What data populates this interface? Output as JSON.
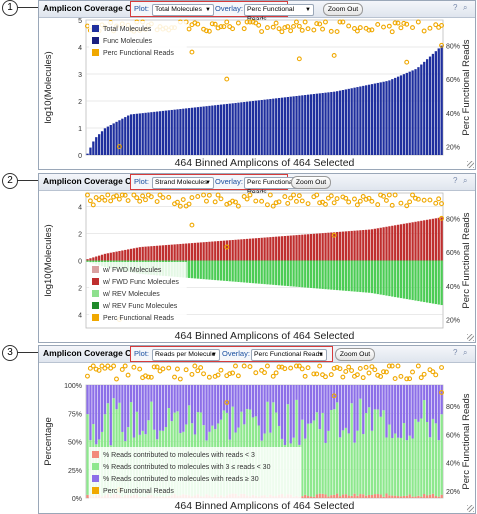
{
  "callouts": [
    "1",
    "2",
    "3"
  ],
  "panel_title": "Amplicon Coverage Chart",
  "plot_label": "Plot:",
  "overlay_label": "Overlay:",
  "zoom_out": "Zoom Out",
  "help_icon_glyph": "?",
  "search_icon_glyph": "⌕",
  "colors": {
    "total": "#1f2f9e",
    "func": "#1a1f80",
    "perc": "#f0a800",
    "fwd": "#d9a1a1",
    "fwd_func": "#bf2e2e",
    "rev": "#8ee08e",
    "rev_func": "#1f8a2a",
    "lt3": "#f28b7a",
    "mid": "#8ee88e",
    "ge30": "#8c6fe8",
    "grid": "#d6d6d6"
  },
  "panels": [
    {
      "plot_value": "Total Molecules",
      "overlay_value": "Perc Functional Reads",
      "xlabel": "464 Binned Amplicons of 464 Selected",
      "ylabel": "log10(Molecules)",
      "y2label": "Perc Functional Reads",
      "legend": [
        "Total Molecules",
        "Func Molecules",
        "Perc Functional Reads"
      ]
    },
    {
      "plot_value": "Strand Molecules",
      "overlay_value": "Perc Functional Reads",
      "xlabel": "464 Binned Amplicons of 464 Selected",
      "ylabel": "log10(Molecules)",
      "y2label": "Perc Functional Reads",
      "legend": [
        "w/ FWD Molecules",
        "w/ FWD Func Molecules",
        "w/ REV Molecules",
        "w/ REV Func Molecules",
        "Perc Functional Reads"
      ]
    },
    {
      "plot_value": "Reads per Molecule",
      "overlay_value": "Perc Functional Reads",
      "xlabel": "464 Binned Amplicons of 464 Selected",
      "ylabel": "Percentage",
      "y2label": "Perc Functional Reads",
      "legend": [
        "% Reads contributed to molecules with reads < 3",
        "% Reads contributed to molecules with 3 ≤ reads < 30",
        "% Reads contributed to molecules with reads ≥ 30",
        "Perc Functional Reads"
      ]
    }
  ],
  "chart_data": [
    {
      "type": "bar",
      "xlabel": "464 Binned Amplicons of 464 Selected",
      "ylabel": "log10(Molecules)",
      "y2label": "Perc Functional Reads",
      "ylim": [
        0,
        5
      ],
      "y2lim": [
        15,
        95
      ],
      "yticks": [
        "0",
        "1",
        "2",
        "3",
        "4",
        "5"
      ],
      "y2ticks": [
        "20%",
        "40%",
        "60%",
        "80%"
      ],
      "n_bins": 123,
      "series": [
        {
          "name": "Total Molecules",
          "profile": [
            [
              0,
              0.05
            ],
            [
              0.02,
              0.6
            ],
            [
              0.05,
              1.0
            ],
            [
              0.12,
              1.5
            ],
            [
              0.4,
              1.9
            ],
            [
              0.7,
              2.35
            ],
            [
              0.85,
              2.75
            ],
            [
              0.93,
              3.2
            ],
            [
              0.98,
              3.8
            ],
            [
              1,
              4.05
            ]
          ]
        },
        {
          "name": "Perc Functional Reads",
          "typical": [
            88,
            95
          ],
          "outliers": [
            20,
            60,
            74,
            80,
            76,
            72,
            70
          ]
        }
      ]
    },
    {
      "type": "bar",
      "xlabel": "464 Binned Amplicons of 464 Selected",
      "ylabel": "log10(Molecules)",
      "y2label": "Perc Functional Reads",
      "ylim": [
        -5,
        5
      ],
      "y2lim": [
        15,
        95
      ],
      "yticks": [
        "4",
        "2",
        "0",
        "2",
        "4"
      ],
      "y2ticks": [
        "20%",
        "40%",
        "60%",
        "80%"
      ],
      "n_bins": 123,
      "series": [
        {
          "name": "w/ FWD Molecules",
          "profile": [
            [
              0,
              0.1
            ],
            [
              0.05,
              0.5
            ],
            [
              0.15,
              1.0
            ],
            [
              0.5,
              1.7
            ],
            [
              0.8,
              2.3
            ],
            [
              1,
              3.2
            ]
          ]
        },
        {
          "name": "w/ REV Molecules",
          "profile": [
            [
              0,
              0.1
            ],
            [
              0.05,
              0.5
            ],
            [
              0.15,
              1.0
            ],
            [
              0.5,
              1.75
            ],
            [
              0.8,
              2.4
            ],
            [
              1,
              3.3
            ]
          ]
        },
        {
          "name": "Perc Functional Reads",
          "typical": [
            87,
            95
          ],
          "outliers": [
            20,
            63,
            70,
            80,
            76
          ]
        }
      ]
    },
    {
      "type": "bar",
      "xlabel": "464 Binned Amplicons of 464 Selected",
      "ylabel": "Percentage",
      "y2label": "Perc Functional Reads",
      "ylim": [
        0,
        100
      ],
      "y2lim": [
        15,
        95
      ],
      "yticks": [
        "0%",
        "25%",
        "50%",
        "75%",
        "100%"
      ],
      "y2ticks": [
        "20%",
        "40%",
        "60%",
        "80%"
      ],
      "n_bins": 123,
      "stacked": true,
      "series": [
        {
          "name": "% Reads contributed to molecules with reads < 3",
          "typical": [
            0,
            4
          ]
        },
        {
          "name": "% Reads contributed to molecules with 3 ≤ reads < 30",
          "typical": [
            45,
            85
          ]
        },
        {
          "name": "% Reads contributed to molecules with reads ≥ 30",
          "typical": [
            15,
            55
          ]
        },
        {
          "name": "Perc Functional Reads",
          "typical": [
            86,
            95
          ],
          "outliers": [
            20,
            72,
            76,
            78
          ]
        }
      ]
    }
  ]
}
